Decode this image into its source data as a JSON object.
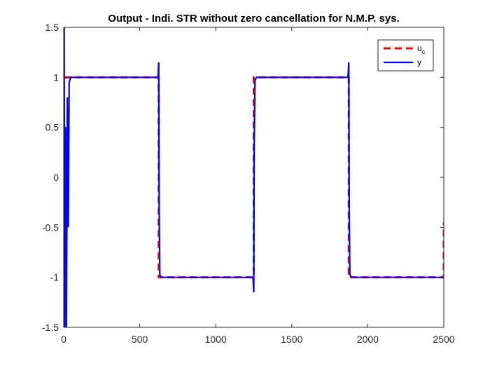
{
  "chart_data": {
    "type": "line",
    "title": "Output - Indi. STR without zero cancellation for N.M.P. sys.",
    "xlabel": "",
    "ylabel": "",
    "xlim": [
      0,
      2500
    ],
    "ylim": [
      -1.5,
      1.5
    ],
    "xticks": [
      0,
      500,
      1000,
      1500,
      2000,
      2500
    ],
    "xtick_labels": [
      "0",
      "500",
      "1000",
      "1500",
      "2000",
      "2500"
    ],
    "yticks": [
      1.5,
      1,
      0.5,
      0,
      -0.5,
      -1,
      -1.5
    ],
    "ytick_labels": [
      "1.5",
      "1",
      "0.5",
      "0",
      "-0.5",
      "-1",
      "-1.5"
    ],
    "grid": false,
    "box": true,
    "legend_position": "top-right",
    "series": [
      {
        "name": "u_c",
        "legend_label": {
          "main": "u",
          "sub": "c"
        },
        "color": "#ff0000",
        "style": "dashed",
        "x": [
          0,
          0,
          625,
          625,
          1250,
          1250,
          1875,
          1875,
          2500,
          2500
        ],
        "y": [
          0,
          1,
          1,
          -1,
          -1,
          1,
          1,
          -1,
          -1,
          -0.45
        ]
      },
      {
        "name": "y",
        "legend_label": {
          "main": "y",
          "sub": ""
        },
        "color": "#0000ff",
        "style": "solid",
        "x": [
          0,
          3,
          7,
          12,
          18,
          24,
          30,
          36,
          45,
          620,
          625,
          628,
          632,
          640,
          1245,
          1250,
          1253,
          1258,
          1268,
          1870,
          1875,
          1878,
          1882,
          1892,
          2500
        ],
        "y": [
          0,
          1.5,
          -1.5,
          0.5,
          -1.5,
          0.8,
          -0.5,
          0.95,
          1,
          1,
          1.15,
          -0.3,
          -0.97,
          -1,
          -1,
          -1.15,
          0.3,
          0.97,
          1,
          1,
          1.15,
          -0.3,
          -0.97,
          -1,
          -1
        ]
      }
    ]
  }
}
